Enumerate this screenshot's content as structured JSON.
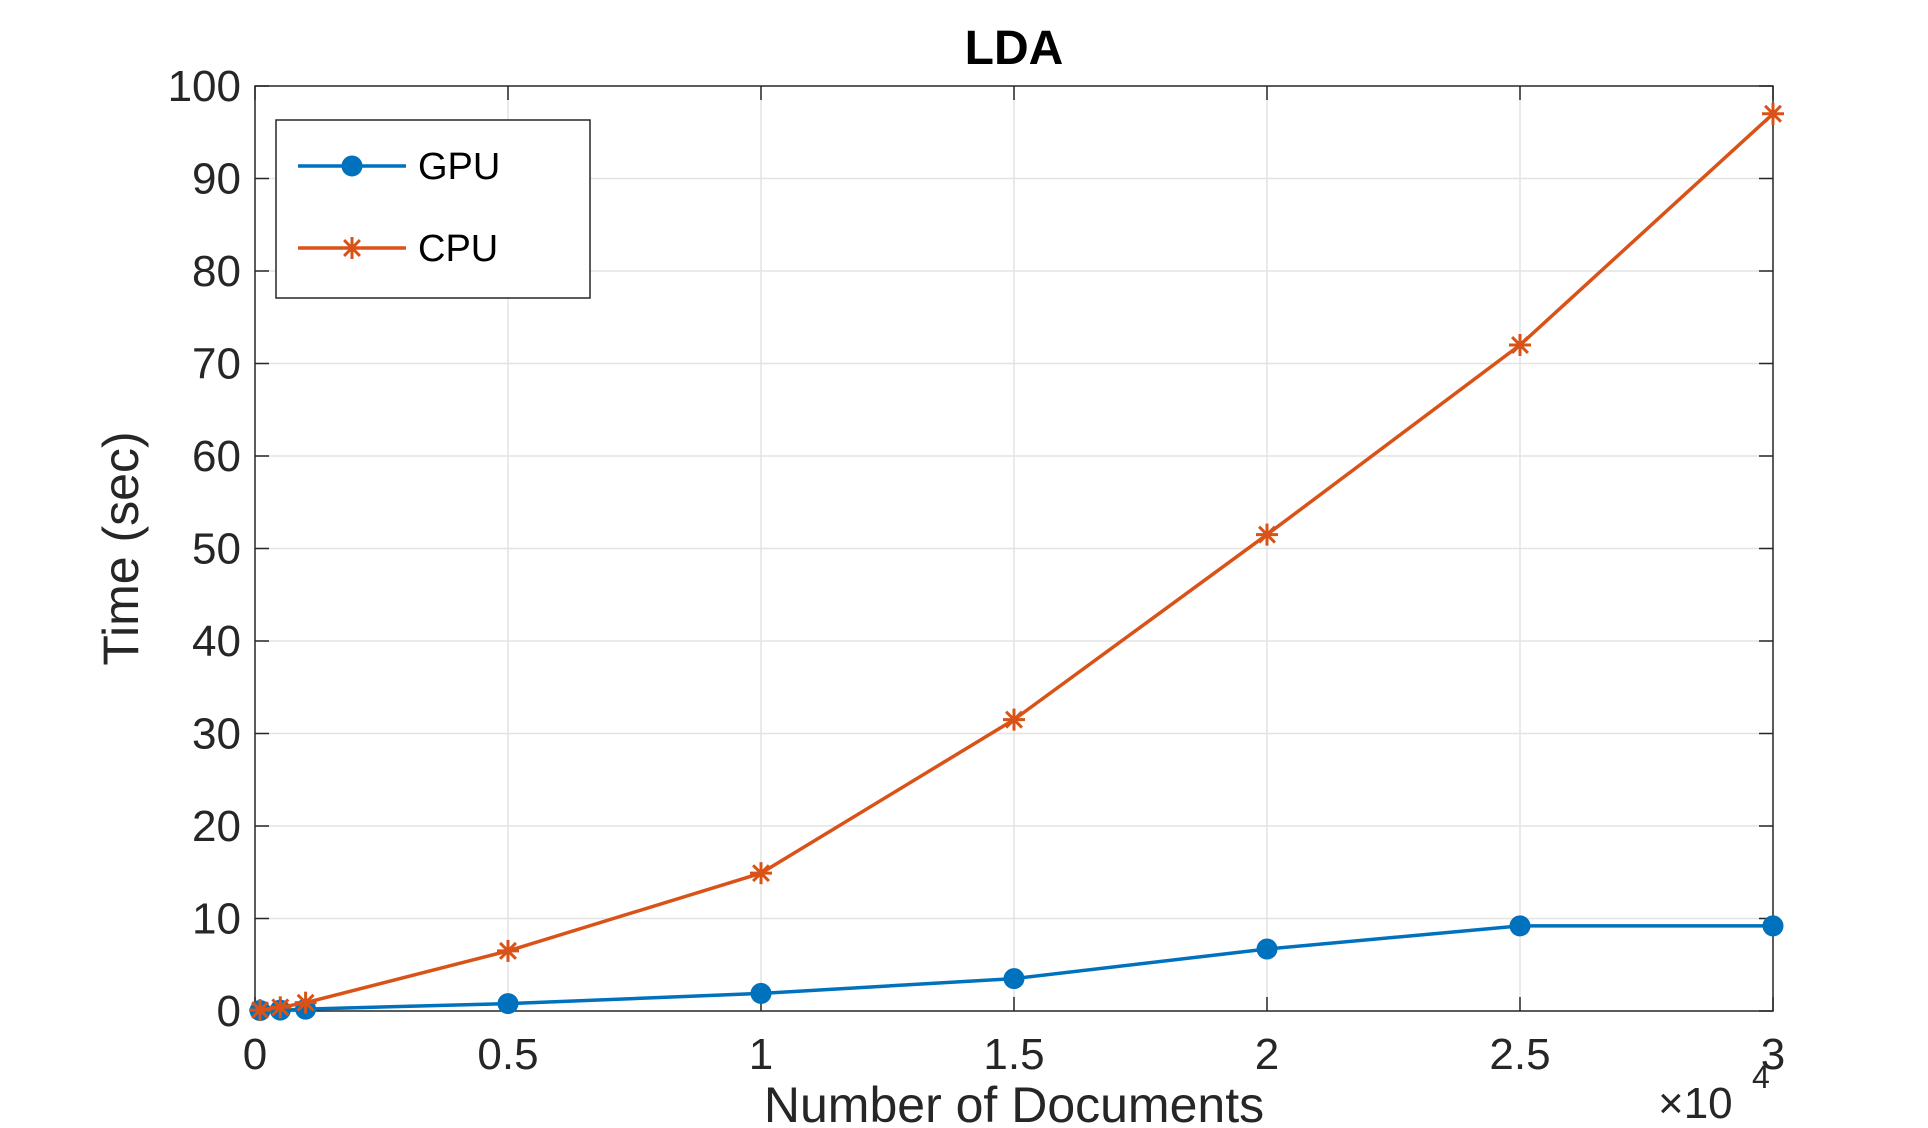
{
  "chart_data": {
    "type": "line",
    "title": "LDA",
    "xlabel": "Number of Documents",
    "ylabel": "Time (sec)",
    "x_multiplier": "×10",
    "x_multiplier_exponent": "4",
    "xlim": [
      0,
      3
    ],
    "ylim": [
      0,
      100
    ],
    "xticks": [
      0,
      0.5,
      1,
      1.5,
      2,
      2.5,
      3
    ],
    "xtick_labels": [
      "0",
      "0.5",
      "1",
      "1.5",
      "2",
      "2.5",
      "3"
    ],
    "yticks": [
      0,
      10,
      20,
      30,
      40,
      50,
      60,
      70,
      80,
      90,
      100
    ],
    "ytick_labels": [
      "0",
      "10",
      "20",
      "30",
      "40",
      "50",
      "60",
      "70",
      "80",
      "90",
      "100"
    ],
    "grid": true,
    "legend_position": "top-left",
    "series": [
      {
        "name": "GPU",
        "color": "#0072BD",
        "marker": "circle",
        "x": [
          0.01,
          0.05,
          0.1,
          0.5,
          1,
          1.5,
          2,
          2.5,
          3
        ],
        "y": [
          0.05,
          0.1,
          0.2,
          0.8,
          1.9,
          3.5,
          6.7,
          9.2,
          9.2
        ]
      },
      {
        "name": "CPU",
        "color": "#D95319",
        "marker": "asterisk",
        "x": [
          0.01,
          0.05,
          0.1,
          0.5,
          1,
          1.5,
          2,
          2.5,
          3
        ],
        "y": [
          0.1,
          0.4,
          0.9,
          6.5,
          14.9,
          31.5,
          51.5,
          72,
          97
        ]
      }
    ]
  }
}
